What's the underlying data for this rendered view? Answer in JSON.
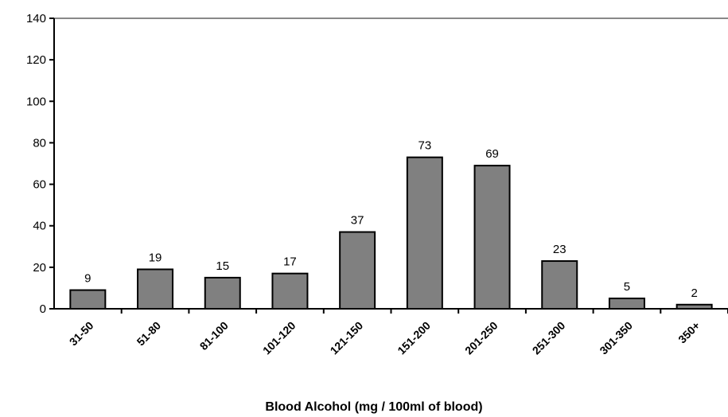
{
  "chart_data": {
    "type": "bar",
    "x_label": "Blood Alcohol (mg / 100ml of blood)",
    "categories": [
      "31-50",
      "51-80",
      "81-100",
      "101-120",
      "121-150",
      "151-200",
      "201-250",
      "251-300",
      "301-350",
      "350+"
    ],
    "values": [
      9,
      19,
      15,
      17,
      37,
      73,
      69,
      23,
      5,
      2
    ],
    "color": "#808080",
    "ylim": [
      0,
      140
    ],
    "yticks": [
      0,
      20,
      40,
      60,
      80,
      100,
      120,
      140
    ],
    "grid": false
  }
}
